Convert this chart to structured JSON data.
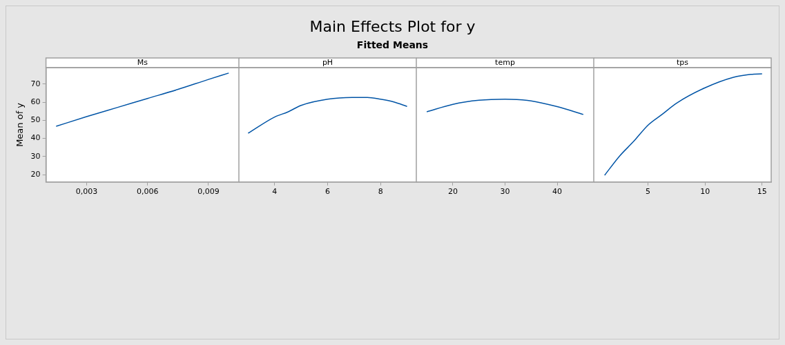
{
  "chart_data": [
    {
      "type": "other",
      "title": "Main Effects Plot for y",
      "subtitle": "Fitted Means"
    },
    {
      "type": "line",
      "xlabel": "Ms",
      "ylabel": "Mean of y",
      "x": [
        0.0015,
        0.003,
        0.0045,
        0.006,
        0.0075,
        0.009,
        0.01
      ],
      "series": [
        {
          "color": "#0054a6",
          "values": [
            46.7,
            52,
            57,
            62,
            67,
            72.5,
            76
          ]
        }
      ],
      "xlim": [
        0.001,
        0.0105
      ],
      "xticks": [
        {
          "value": 0.003,
          "label": "0,003"
        },
        {
          "value": 0.006,
          "label": "0,006"
        },
        {
          "value": 0.009,
          "label": "0,009"
        }
      ],
      "ylim": [
        16,
        79
      ],
      "yticks": [
        20,
        30,
        40,
        50,
        60,
        70
      ]
    },
    {
      "type": "line",
      "xlabel": "pH",
      "x": [
        3,
        4,
        4.5,
        5,
        6,
        7,
        7.5,
        8,
        8.5,
        9
      ],
      "series": [
        {
          "color": "#0054a6",
          "values": [
            42.9,
            51.8,
            54.6,
            58.2,
            61.6,
            62.6,
            62.6,
            61.6,
            60.1,
            57.6
          ]
        }
      ],
      "xlim": [
        2.65,
        9.35
      ],
      "xticks": [
        4,
        6,
        8
      ],
      "ylim": [
        16,
        79
      ],
      "yticks": [
        20,
        30,
        40,
        50,
        60,
        70
      ],
      "tick_labels": "x"
    },
    {
      "type": "line",
      "xlabel": "temp",
      "x": [
        15,
        20,
        25,
        30,
        35,
        40,
        45
      ],
      "series": [
        {
          "color": "#0054a6",
          "values": [
            54.7,
            58.8,
            61,
            61.6,
            60.7,
            57.5,
            53.2
          ]
        }
      ],
      "xlim": [
        13,
        47
      ],
      "xticks": [
        20,
        30,
        40
      ],
      "ylim": [
        16,
        79
      ],
      "yticks": [
        20,
        30,
        40,
        50,
        60,
        70
      ],
      "tick_labels": "x"
    },
    {
      "type": "line",
      "xlabel": "tps",
      "x": [
        1.2,
        2.5,
        3.75,
        5,
        6.25,
        7.5,
        10,
        12.5,
        14,
        15
      ],
      "series": [
        {
          "color": "#0054a6",
          "values": [
            19.7,
            30.2,
            38.4,
            47.3,
            53.3,
            59.4,
            67.9,
            73.7,
            75.3,
            75.6
          ]
        }
      ],
      "xlim": [
        0.25,
        15.8
      ],
      "xticks": [
        5,
        10,
        15
      ],
      "ylim": [
        16,
        79
      ],
      "yticks": [
        20,
        30,
        40,
        50,
        60,
        70
      ],
      "tick_labels": "x"
    }
  ]
}
